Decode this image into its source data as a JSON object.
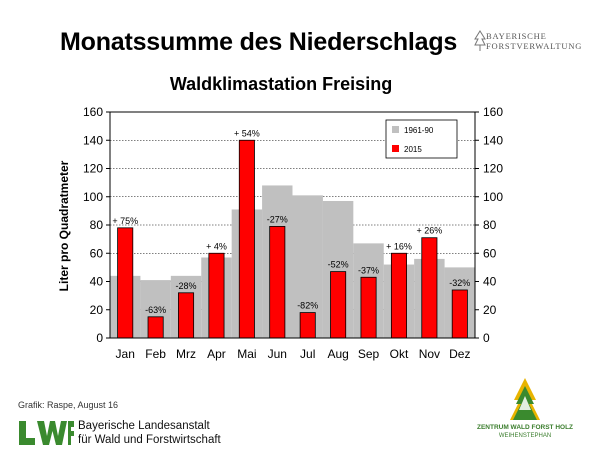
{
  "header": {
    "title": "Monatssumme des Niederschlags",
    "logo_line1": "BAYERISCHE",
    "logo_line2": "FORSTVERWALTUNG"
  },
  "chart_data": {
    "type": "bar",
    "title": "Waldklimastation Freising",
    "ylabel": "Liter pro Quadratmeter",
    "ylim": [
      0,
      160
    ],
    "yticks": [
      0,
      20,
      40,
      60,
      80,
      100,
      120,
      140,
      160
    ],
    "grid": true,
    "legend_position": "top-right",
    "categories": [
      "Jan",
      "Feb",
      "Mrz",
      "Apr",
      "Mai",
      "Jun",
      "Jul",
      "Aug",
      "Sep",
      "Okt",
      "Nov",
      "Dez"
    ],
    "series": [
      {
        "name": "1961-90",
        "color": "#c0c0c0",
        "values": [
          44,
          41,
          44,
          57,
          91,
          108,
          101,
          97,
          67,
          52,
          56,
          50
        ]
      },
      {
        "name": "2015",
        "color": "#ff0000",
        "values": [
          78,
          15,
          32,
          60,
          140,
          79,
          18,
          47,
          43,
          60,
          71,
          34
        ]
      }
    ],
    "bar_labels": [
      "+ 75%",
      "-63%",
      "-28%",
      "+ 4%",
      "+ 54%",
      "-27%",
      "-82%",
      "-52%",
      "-37%",
      "+ 16%",
      "+ 26%",
      "-32%"
    ]
  },
  "footer": {
    "credit": "Grafik: Raspe, August 16",
    "lwf_text1": "Bayerische Landesanstalt",
    "lwf_text2": "für Wald und Forstwirtschaft",
    "zwfh_line1": "ZENTRUM WALD FORST HOLZ",
    "zwfh_line2": "WEIHENSTEPHAN"
  },
  "colors": {
    "observed": "#ff0000",
    "normal": "#c0c0c0",
    "lwf_green": "#3a8a2e"
  }
}
